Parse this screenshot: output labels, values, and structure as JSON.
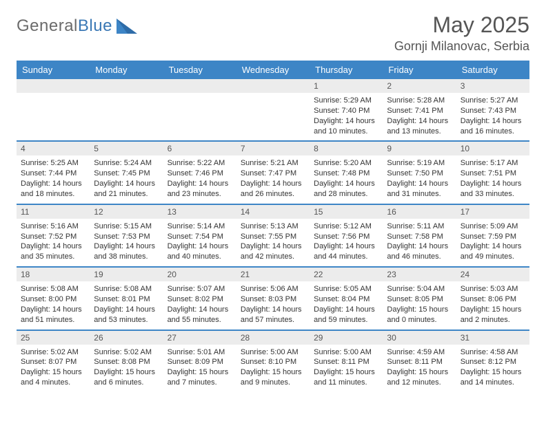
{
  "logo": {
    "text1": "General",
    "text2": "Blue"
  },
  "title": "May 2025",
  "location": "Gornji Milanovac, Serbia",
  "header_color": "#3d85c6",
  "daynum_bg": "#ececec",
  "dow": [
    "Sunday",
    "Monday",
    "Tuesday",
    "Wednesday",
    "Thursday",
    "Friday",
    "Saturday"
  ],
  "weeks": [
    [
      {
        "n": "",
        "l1": "",
        "l2": "",
        "l3": "",
        "l4": ""
      },
      {
        "n": "",
        "l1": "",
        "l2": "",
        "l3": "",
        "l4": ""
      },
      {
        "n": "",
        "l1": "",
        "l2": "",
        "l3": "",
        "l4": ""
      },
      {
        "n": "",
        "l1": "",
        "l2": "",
        "l3": "",
        "l4": ""
      },
      {
        "n": "1",
        "l1": "Sunrise: 5:29 AM",
        "l2": "Sunset: 7:40 PM",
        "l3": "Daylight: 14 hours",
        "l4": "and 10 minutes."
      },
      {
        "n": "2",
        "l1": "Sunrise: 5:28 AM",
        "l2": "Sunset: 7:41 PM",
        "l3": "Daylight: 14 hours",
        "l4": "and 13 minutes."
      },
      {
        "n": "3",
        "l1": "Sunrise: 5:27 AM",
        "l2": "Sunset: 7:43 PM",
        "l3": "Daylight: 14 hours",
        "l4": "and 16 minutes."
      }
    ],
    [
      {
        "n": "4",
        "l1": "Sunrise: 5:25 AM",
        "l2": "Sunset: 7:44 PM",
        "l3": "Daylight: 14 hours",
        "l4": "and 18 minutes."
      },
      {
        "n": "5",
        "l1": "Sunrise: 5:24 AM",
        "l2": "Sunset: 7:45 PM",
        "l3": "Daylight: 14 hours",
        "l4": "and 21 minutes."
      },
      {
        "n": "6",
        "l1": "Sunrise: 5:22 AM",
        "l2": "Sunset: 7:46 PM",
        "l3": "Daylight: 14 hours",
        "l4": "and 23 minutes."
      },
      {
        "n": "7",
        "l1": "Sunrise: 5:21 AM",
        "l2": "Sunset: 7:47 PM",
        "l3": "Daylight: 14 hours",
        "l4": "and 26 minutes."
      },
      {
        "n": "8",
        "l1": "Sunrise: 5:20 AM",
        "l2": "Sunset: 7:48 PM",
        "l3": "Daylight: 14 hours",
        "l4": "and 28 minutes."
      },
      {
        "n": "9",
        "l1": "Sunrise: 5:19 AM",
        "l2": "Sunset: 7:50 PM",
        "l3": "Daylight: 14 hours",
        "l4": "and 31 minutes."
      },
      {
        "n": "10",
        "l1": "Sunrise: 5:17 AM",
        "l2": "Sunset: 7:51 PM",
        "l3": "Daylight: 14 hours",
        "l4": "and 33 minutes."
      }
    ],
    [
      {
        "n": "11",
        "l1": "Sunrise: 5:16 AM",
        "l2": "Sunset: 7:52 PM",
        "l3": "Daylight: 14 hours",
        "l4": "and 35 minutes."
      },
      {
        "n": "12",
        "l1": "Sunrise: 5:15 AM",
        "l2": "Sunset: 7:53 PM",
        "l3": "Daylight: 14 hours",
        "l4": "and 38 minutes."
      },
      {
        "n": "13",
        "l1": "Sunrise: 5:14 AM",
        "l2": "Sunset: 7:54 PM",
        "l3": "Daylight: 14 hours",
        "l4": "and 40 minutes."
      },
      {
        "n": "14",
        "l1": "Sunrise: 5:13 AM",
        "l2": "Sunset: 7:55 PM",
        "l3": "Daylight: 14 hours",
        "l4": "and 42 minutes."
      },
      {
        "n": "15",
        "l1": "Sunrise: 5:12 AM",
        "l2": "Sunset: 7:56 PM",
        "l3": "Daylight: 14 hours",
        "l4": "and 44 minutes."
      },
      {
        "n": "16",
        "l1": "Sunrise: 5:11 AM",
        "l2": "Sunset: 7:58 PM",
        "l3": "Daylight: 14 hours",
        "l4": "and 46 minutes."
      },
      {
        "n": "17",
        "l1": "Sunrise: 5:09 AM",
        "l2": "Sunset: 7:59 PM",
        "l3": "Daylight: 14 hours",
        "l4": "and 49 minutes."
      }
    ],
    [
      {
        "n": "18",
        "l1": "Sunrise: 5:08 AM",
        "l2": "Sunset: 8:00 PM",
        "l3": "Daylight: 14 hours",
        "l4": "and 51 minutes."
      },
      {
        "n": "19",
        "l1": "Sunrise: 5:08 AM",
        "l2": "Sunset: 8:01 PM",
        "l3": "Daylight: 14 hours",
        "l4": "and 53 minutes."
      },
      {
        "n": "20",
        "l1": "Sunrise: 5:07 AM",
        "l2": "Sunset: 8:02 PM",
        "l3": "Daylight: 14 hours",
        "l4": "and 55 minutes."
      },
      {
        "n": "21",
        "l1": "Sunrise: 5:06 AM",
        "l2": "Sunset: 8:03 PM",
        "l3": "Daylight: 14 hours",
        "l4": "and 57 minutes."
      },
      {
        "n": "22",
        "l1": "Sunrise: 5:05 AM",
        "l2": "Sunset: 8:04 PM",
        "l3": "Daylight: 14 hours",
        "l4": "and 59 minutes."
      },
      {
        "n": "23",
        "l1": "Sunrise: 5:04 AM",
        "l2": "Sunset: 8:05 PM",
        "l3": "Daylight: 15 hours",
        "l4": "and 0 minutes."
      },
      {
        "n": "24",
        "l1": "Sunrise: 5:03 AM",
        "l2": "Sunset: 8:06 PM",
        "l3": "Daylight: 15 hours",
        "l4": "and 2 minutes."
      }
    ],
    [
      {
        "n": "25",
        "l1": "Sunrise: 5:02 AM",
        "l2": "Sunset: 8:07 PM",
        "l3": "Daylight: 15 hours",
        "l4": "and 4 minutes."
      },
      {
        "n": "26",
        "l1": "Sunrise: 5:02 AM",
        "l2": "Sunset: 8:08 PM",
        "l3": "Daylight: 15 hours",
        "l4": "and 6 minutes."
      },
      {
        "n": "27",
        "l1": "Sunrise: 5:01 AM",
        "l2": "Sunset: 8:09 PM",
        "l3": "Daylight: 15 hours",
        "l4": "and 7 minutes."
      },
      {
        "n": "28",
        "l1": "Sunrise: 5:00 AM",
        "l2": "Sunset: 8:10 PM",
        "l3": "Daylight: 15 hours",
        "l4": "and 9 minutes."
      },
      {
        "n": "29",
        "l1": "Sunrise: 5:00 AM",
        "l2": "Sunset: 8:11 PM",
        "l3": "Daylight: 15 hours",
        "l4": "and 11 minutes."
      },
      {
        "n": "30",
        "l1": "Sunrise: 4:59 AM",
        "l2": "Sunset: 8:11 PM",
        "l3": "Daylight: 15 hours",
        "l4": "and 12 minutes."
      },
      {
        "n": "31",
        "l1": "Sunrise: 4:58 AM",
        "l2": "Sunset: 8:12 PM",
        "l3": "Daylight: 15 hours",
        "l4": "and 14 minutes."
      }
    ]
  ]
}
